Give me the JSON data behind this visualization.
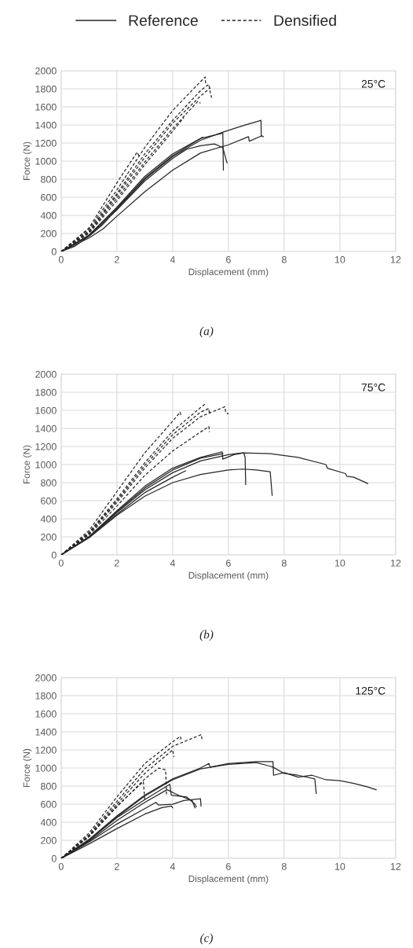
{
  "chart_data": [
    {
      "type": "line",
      "title": "25°C",
      "xlabel": "Displacement (mm)",
      "ylabel": "Force (N)",
      "annotations": [
        "(a)"
      ],
      "xlim": [
        0,
        12
      ],
      "ylim": [
        0,
        2000
      ],
      "xticks": [
        0,
        2,
        4,
        6,
        8,
        10,
        12
      ],
      "yticks": [
        0,
        200,
        400,
        600,
        800,
        1000,
        1200,
        1400,
        1600,
        1800,
        2000
      ],
      "grid": true,
      "legend": "top",
      "marker": "none",
      "series": [
        {
          "name": "Reference",
          "color": "#262626",
          "line_style": "solid",
          "x": [
            0,
            0.5,
            1,
            1.5,
            2,
            3,
            4,
            5,
            5.8,
            6.5,
            7.17,
            7.18,
            7.25
          ],
          "values": [
            0,
            60,
            170,
            300,
            470,
            800,
            1050,
            1230,
            1320,
            1390,
            1450,
            1280,
            1270
          ]
        },
        {
          "color": "#262626",
          "line_style": "solid",
          "x": [
            0,
            1,
            1.5,
            2,
            3,
            4,
            5,
            6,
            6.72,
            6.75,
            7.2
          ],
          "values": [
            0,
            150,
            250,
            390,
            660,
            900,
            1090,
            1180,
            1270,
            1220,
            1280
          ]
        },
        {
          "color": "#262626",
          "line_style": "solid",
          "x": [
            0,
            1,
            2,
            3,
            4,
            4.5,
            5,
            5.5,
            5.8,
            5.95
          ],
          "values": [
            0,
            170,
            460,
            780,
            1030,
            1130,
            1170,
            1190,
            1150,
            980
          ]
        },
        {
          "color": "#262626",
          "line_style": "solid",
          "x": [
            0,
            1,
            2,
            3,
            4,
            5,
            5.8,
            5.82
          ],
          "values": [
            0,
            180,
            480,
            810,
            1060,
            1250,
            1310,
            900
          ]
        },
        {
          "color": "#262626",
          "line_style": "solid",
          "x": [
            0,
            1,
            2,
            3,
            4,
            5.08
          ],
          "values": [
            0,
            180,
            490,
            830,
            1080,
            1265
          ]
        },
        {
          "name": "Densified",
          "color": "#262626",
          "line_style": "dashed",
          "x": [
            0,
            1,
            2,
            3,
            4,
            5,
            5.17,
            5.18
          ],
          "values": [
            0,
            250,
            680,
            1150,
            1560,
            1880,
            1930,
            1850
          ]
        },
        {
          "color": "#262626",
          "line_style": "dashed",
          "x": [
            0,
            1,
            2,
            3,
            4,
            5,
            5.3,
            5.35,
            5.4
          ],
          "values": [
            0,
            230,
            640,
            1080,
            1450,
            1780,
            1850,
            1760,
            1700
          ]
        },
        {
          "color": "#262626",
          "line_style": "dashed",
          "x": [
            0,
            1,
            2,
            2.73,
            2.8
          ],
          "values": [
            0,
            260,
            760,
            1100,
            1050
          ]
        },
        {
          "color": "#262626",
          "line_style": "dashed",
          "x": [
            0,
            1,
            2,
            3,
            4,
            4.9,
            5.0
          ],
          "values": [
            0,
            210,
            590,
            990,
            1360,
            1660,
            1640
          ]
        },
        {
          "color": "#262626",
          "line_style": "dashed",
          "x": [
            0,
            1,
            2,
            3,
            4,
            4.4
          ],
          "values": [
            0,
            200,
            560,
            960,
            1330,
            1480
          ]
        },
        {
          "color": "#262626",
          "line_style": "dashed",
          "x": [
            0,
            1,
            2,
            3,
            4,
            5,
            5.35
          ],
          "values": [
            0,
            220,
            620,
            1040,
            1420,
            1720,
            1810
          ]
        }
      ]
    },
    {
      "type": "line",
      "title": "75°C",
      "xlabel": "Displacement (mm)",
      "ylabel": "Force (N)",
      "annotations": [
        "(b)"
      ],
      "xlim": [
        0,
        12
      ],
      "ylim": [
        0,
        2000
      ],
      "xticks": [
        0,
        2,
        4,
        6,
        8,
        10,
        12
      ],
      "yticks": [
        0,
        200,
        400,
        600,
        800,
        1000,
        1200,
        1400,
        1600,
        1800,
        2000
      ],
      "grid": true,
      "marker": "none",
      "series": [
        {
          "color": "#262626",
          "line_style": "solid",
          "x": [
            0,
            1,
            2,
            3,
            4,
            5,
            6,
            6.5,
            7.5,
            8.5,
            9.5,
            9.55,
            10.2,
            10.25,
            10.5,
            11
          ],
          "values": [
            0,
            200,
            470,
            720,
            910,
            1040,
            1110,
            1130,
            1120,
            1080,
            1000,
            960,
            900,
            870,
            860,
            790
          ]
        },
        {
          "color": "#262626",
          "line_style": "solid",
          "x": [
            0,
            1,
            2,
            3,
            4,
            5,
            6,
            6.5,
            7,
            7.5,
            7.57
          ],
          "values": [
            0,
            190,
            440,
            650,
            800,
            890,
            940,
            950,
            940,
            920,
            660
          ]
        },
        {
          "color": "#262626",
          "line_style": "solid",
          "x": [
            0,
            1,
            2,
            3,
            4,
            5,
            5.78,
            5.8,
            6.2,
            6.55,
            6.6,
            6.62
          ],
          "values": [
            0,
            200,
            490,
            760,
            960,
            1080,
            1140,
            1060,
            1110,
            1130,
            1080,
            780
          ]
        },
        {
          "color": "#262626",
          "line_style": "solid",
          "x": [
            0,
            1,
            2,
            3,
            4,
            5,
            5.8
          ],
          "values": [
            0,
            200,
            480,
            740,
            940,
            1070,
            1120
          ]
        },
        {
          "color": "#262626",
          "line_style": "solid",
          "x": [
            0,
            1,
            2,
            3,
            4,
            4.46
          ],
          "values": [
            0,
            200,
            450,
            690,
            860,
            930
          ]
        },
        {
          "color": "#262626",
          "line_style": "dashed",
          "x": [
            0,
            1,
            2,
            3,
            4,
            4.27,
            4.3
          ],
          "values": [
            0,
            270,
            700,
            1130,
            1480,
            1580,
            1540
          ]
        },
        {
          "color": "#262626",
          "line_style": "dashed",
          "x": [
            0,
            1,
            2,
            3,
            4,
            5,
            5.17
          ],
          "values": [
            0,
            250,
            620,
            1020,
            1370,
            1630,
            1670
          ]
        },
        {
          "color": "#262626",
          "line_style": "dashed",
          "x": [
            0,
            1,
            2,
            3,
            4,
            5,
            5.3,
            5.32
          ],
          "values": [
            0,
            240,
            600,
            990,
            1330,
            1580,
            1620,
            1560
          ]
        },
        {
          "color": "#262626",
          "line_style": "dashed",
          "x": [
            0,
            1,
            2,
            3,
            4,
            5,
            5.88,
            5.9,
            6.0
          ],
          "values": [
            0,
            230,
            580,
            960,
            1290,
            1530,
            1640,
            1580,
            1560
          ]
        },
        {
          "color": "#262626",
          "line_style": "dashed",
          "x": [
            0,
            1,
            2,
            3,
            4,
            5,
            5.3,
            5.32
          ],
          "values": [
            0,
            220,
            540,
            880,
            1150,
            1360,
            1420,
            1360
          ]
        }
      ]
    },
    {
      "type": "line",
      "title": "125°C",
      "xlabel": "Displacement (mm)",
      "ylabel": "Force (N)",
      "annotations": [
        "(c)"
      ],
      "xlim": [
        0,
        12
      ],
      "ylim": [
        0,
        2000
      ],
      "xticks": [
        0,
        2,
        4,
        6,
        8,
        10,
        12
      ],
      "yticks": [
        0,
        200,
        400,
        600,
        800,
        1000,
        1200,
        1400,
        1600,
        1800,
        2000
      ],
      "grid": true,
      "marker": "none",
      "series": [
        {
          "color": "#262626",
          "line_style": "solid",
          "x": [
            0,
            1,
            2,
            3,
            4,
            5,
            5.3,
            5.35,
            6,
            7,
            7.6,
            7.62,
            8,
            8.5,
            9,
            9.5,
            10,
            10.5,
            11,
            11.3
          ],
          "values": [
            0,
            210,
            470,
            700,
            880,
            1000,
            1050,
            1010,
            1050,
            1070,
            1070,
            920,
            950,
            900,
            920,
            870,
            860,
            830,
            790,
            760
          ]
        },
        {
          "color": "#262626",
          "line_style": "solid",
          "x": [
            0,
            1,
            2,
            3,
            4,
            5,
            6,
            7,
            7.5,
            7.6,
            8,
            8.5,
            9.1,
            9.15
          ],
          "values": [
            0,
            200,
            460,
            690,
            870,
            990,
            1040,
            1060,
            1020,
            1010,
            940,
            920,
            880,
            720
          ]
        },
        {
          "color": "#262626",
          "line_style": "solid",
          "x": [
            0,
            1,
            2,
            3,
            3.9,
            3.95,
            4.5,
            4.8,
            4.85
          ],
          "values": [
            0,
            200,
            450,
            650,
            820,
            700,
            680,
            600,
            570
          ]
        },
        {
          "color": "#262626",
          "line_style": "solid",
          "x": [
            0,
            1,
            2,
            3,
            3.8,
            4.2,
            4.7,
            4.8
          ],
          "values": [
            0,
            190,
            420,
            620,
            760,
            700,
            640,
            560
          ]
        },
        {
          "color": "#262626",
          "line_style": "solid",
          "x": [
            0,
            1,
            2,
            3,
            3.4,
            3.5,
            4,
            4.4,
            5,
            5.02
          ],
          "values": [
            0,
            180,
            380,
            550,
            620,
            590,
            600,
            640,
            660,
            580
          ]
        },
        {
          "color": "#262626",
          "line_style": "solid",
          "x": [
            0,
            1,
            2,
            3,
            3.6,
            3.95,
            4
          ],
          "values": [
            0,
            160,
            330,
            490,
            560,
            580,
            560
          ]
        },
        {
          "color": "#262626",
          "line_style": "dashed",
          "x": [
            0,
            1,
            2,
            3,
            4,
            4.28,
            4.3
          ],
          "values": [
            0,
            280,
            680,
            1050,
            1290,
            1350,
            1310
          ]
        },
        {
          "color": "#262626",
          "line_style": "dashed",
          "x": [
            0,
            1,
            2,
            3,
            4,
            5.03,
            5.05
          ],
          "values": [
            0,
            260,
            630,
            990,
            1240,
            1370,
            1320
          ]
        },
        {
          "color": "#262626",
          "line_style": "dashed",
          "x": [
            0,
            1,
            2,
            3,
            4,
            4.05
          ],
          "values": [
            0,
            250,
            600,
            940,
            1200,
            1120
          ]
        },
        {
          "color": "#262626",
          "line_style": "dashed",
          "x": [
            0,
            1,
            2,
            2.95,
            3
          ],
          "values": [
            0,
            240,
            580,
            850,
            650
          ]
        },
        {
          "color": "#262626",
          "line_style": "dashed",
          "x": [
            0,
            1,
            2,
            3,
            3.5,
            3.75,
            3.78
          ],
          "values": [
            0,
            240,
            570,
            880,
            1000,
            980,
            700
          ]
        }
      ]
    }
  ]
}
